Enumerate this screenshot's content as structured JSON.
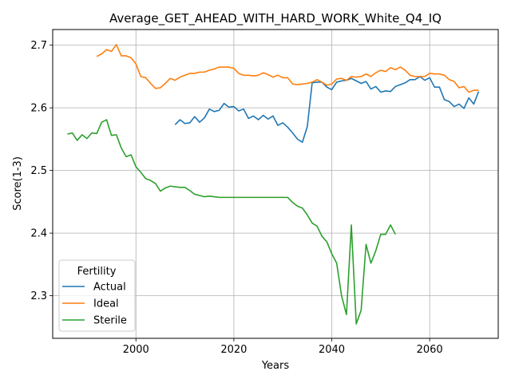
{
  "chart_data": {
    "type": "line",
    "title": "Average_GET_AHEAD_WITH_HARD_WORK_White_Q4_IQ",
    "xlabel": "Years",
    "ylabel": "Score(1-3)",
    "xlim": [
      1983,
      2074
    ],
    "ylim": [
      2.232,
      2.725
    ],
    "xticks": [
      2000,
      2020,
      2040,
      2060
    ],
    "yticks": [
      2.3,
      2.4,
      2.5,
      2.6,
      2.7
    ],
    "grid": true,
    "legend": {
      "title": "Fertility",
      "placement": "lower-left"
    },
    "colors": {
      "Actual": "#1f77b4",
      "Ideal": "#ff7f0e",
      "Sterile": "#2ca02c"
    },
    "series": [
      {
        "name": "Actual",
        "x": [
          2008,
          2009,
          2010,
          2011,
          2012,
          2013,
          2014,
          2015,
          2016,
          2017,
          2018,
          2019,
          2020,
          2021,
          2022,
          2023,
          2024,
          2025,
          2026,
          2027,
          2028,
          2029,
          2030,
          2031,
          2032,
          2033,
          2034,
          2035,
          2036,
          2037,
          2038,
          2039,
          2040,
          2041,
          2042,
          2043,
          2044,
          2045,
          2046,
          2047,
          2048,
          2049,
          2050,
          2051,
          2052,
          2053,
          2054,
          2055,
          2056,
          2057,
          2058,
          2059,
          2060,
          2061,
          2062,
          2063,
          2064,
          2065,
          2066,
          2067,
          2068,
          2069,
          2070
        ],
        "y": [
          2.573,
          2.581,
          2.575,
          2.576,
          2.586,
          2.577,
          2.584,
          2.598,
          2.594,
          2.596,
          2.607,
          2.601,
          2.602,
          2.595,
          2.598,
          2.583,
          2.587,
          2.581,
          2.588,
          2.582,
          2.587,
          2.572,
          2.576,
          2.569,
          2.56,
          2.55,
          2.545,
          2.57,
          2.64,
          2.641,
          2.641,
          2.633,
          2.629,
          2.641,
          2.643,
          2.644,
          2.647,
          2.643,
          2.639,
          2.642,
          2.63,
          2.634,
          2.625,
          2.627,
          2.626,
          2.634,
          2.637,
          2.64,
          2.645,
          2.645,
          2.65,
          2.644,
          2.648,
          2.633,
          2.633,
          2.613,
          2.61,
          2.602,
          2.606,
          2.599,
          2.616,
          2.606,
          2.626
        ]
      },
      {
        "name": "Ideal",
        "x": [
          1992,
          1993,
          1994,
          1995,
          1996,
          1997,
          1998,
          1999,
          2000,
          2001,
          2002,
          2003,
          2004,
          2005,
          2006,
          2007,
          2008,
          2009,
          2010,
          2011,
          2012,
          2013,
          2014,
          2015,
          2016,
          2017,
          2018,
          2019,
          2020,
          2021,
          2022,
          2023,
          2024,
          2025,
          2026,
          2027,
          2028,
          2029,
          2030,
          2031,
          2032,
          2033,
          2034,
          2035,
          2036,
          2037,
          2038,
          2039,
          2040,
          2041,
          2042,
          2043,
          2044,
          2045,
          2046,
          2047,
          2048,
          2049,
          2050,
          2051,
          2052,
          2053,
          2054,
          2055,
          2056,
          2057,
          2058,
          2059,
          2060,
          2061,
          2062,
          2063,
          2064,
          2065,
          2066,
          2067,
          2068,
          2069,
          2070
        ],
        "y": [
          2.682,
          2.686,
          2.693,
          2.69,
          2.701,
          2.683,
          2.683,
          2.68,
          2.67,
          2.65,
          2.648,
          2.639,
          2.631,
          2.632,
          2.639,
          2.647,
          2.644,
          2.649,
          2.652,
          2.655,
          2.655,
          2.657,
          2.657,
          2.66,
          2.662,
          2.665,
          2.665,
          2.665,
          2.663,
          2.655,
          2.652,
          2.652,
          2.651,
          2.652,
          2.656,
          2.653,
          2.649,
          2.652,
          2.648,
          2.648,
          2.638,
          2.637,
          2.638,
          2.639,
          2.641,
          2.645,
          2.641,
          2.636,
          2.638,
          2.646,
          2.647,
          2.644,
          2.65,
          2.649,
          2.65,
          2.654,
          2.65,
          2.656,
          2.66,
          2.658,
          2.664,
          2.661,
          2.665,
          2.66,
          2.652,
          2.65,
          2.65,
          2.65,
          2.655,
          2.654,
          2.654,
          2.652,
          2.645,
          2.642,
          2.632,
          2.634,
          2.625,
          2.628,
          2.628
        ]
      },
      {
        "name": "Sterile",
        "x": [
          1986,
          1987,
          1988,
          1989,
          1990,
          1991,
          1992,
          1993,
          1994,
          1995,
          1996,
          1997,
          1998,
          1999,
          2000,
          2001,
          2002,
          2003,
          2004,
          2005,
          2006,
          2007,
          2008,
          2009,
          2010,
          2011,
          2012,
          2013,
          2014,
          2015,
          2016,
          2017,
          2018,
          2019,
          2020,
          2021,
          2022,
          2023,
          2024,
          2025,
          2026,
          2027,
          2028,
          2029,
          2030,
          2031,
          2032,
          2033,
          2034,
          2035,
          2036,
          2037,
          2038,
          2039,
          2040,
          2041,
          2042,
          2043,
          2044,
          2045,
          2046,
          2047,
          2048,
          2049,
          2050,
          2051,
          2052,
          2053
        ],
        "y": [
          2.558,
          2.56,
          2.548,
          2.557,
          2.551,
          2.56,
          2.559,
          2.577,
          2.581,
          2.556,
          2.557,
          2.536,
          2.522,
          2.525,
          2.506,
          2.497,
          2.487,
          2.484,
          2.479,
          2.467,
          2.472,
          2.475,
          2.474,
          2.473,
          2.473,
          2.468,
          2.462,
          2.46,
          2.458,
          2.459,
          2.458,
          2.457,
          2.457,
          2.457,
          2.457,
          2.457,
          2.457,
          2.457,
          2.457,
          2.457,
          2.457,
          2.457,
          2.457,
          2.457,
          2.457,
          2.457,
          2.449,
          2.443,
          2.44,
          2.429,
          2.416,
          2.411,
          2.395,
          2.386,
          2.367,
          2.352,
          2.3,
          2.27,
          2.413,
          2.255,
          2.277,
          2.382,
          2.352,
          2.372,
          2.398,
          2.398,
          2.413,
          2.398
        ]
      }
    ]
  }
}
